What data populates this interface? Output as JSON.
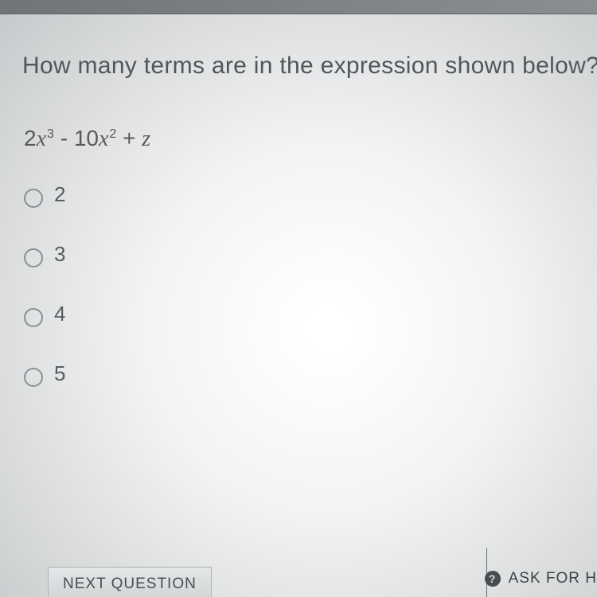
{
  "question": {
    "prompt": "How many terms are in the expression shown below?",
    "expression_parts": {
      "coef1": "2",
      "var1": "x",
      "exp1": "3",
      "op1": " - ",
      "coef2": "10",
      "var2": "x",
      "exp2": "2",
      "op2": " + ",
      "var3": "z"
    },
    "options": [
      "2",
      "3",
      "4",
      "5"
    ]
  },
  "buttons": {
    "next": "NEXT QUESTION",
    "ask": "ASK FOR H"
  },
  "icons": {
    "help_glyph": "?"
  },
  "colors": {
    "text": "#535659",
    "radio_border": "#8c9092",
    "button_border": "#aeb2b4",
    "divider": "#6a6e70"
  }
}
